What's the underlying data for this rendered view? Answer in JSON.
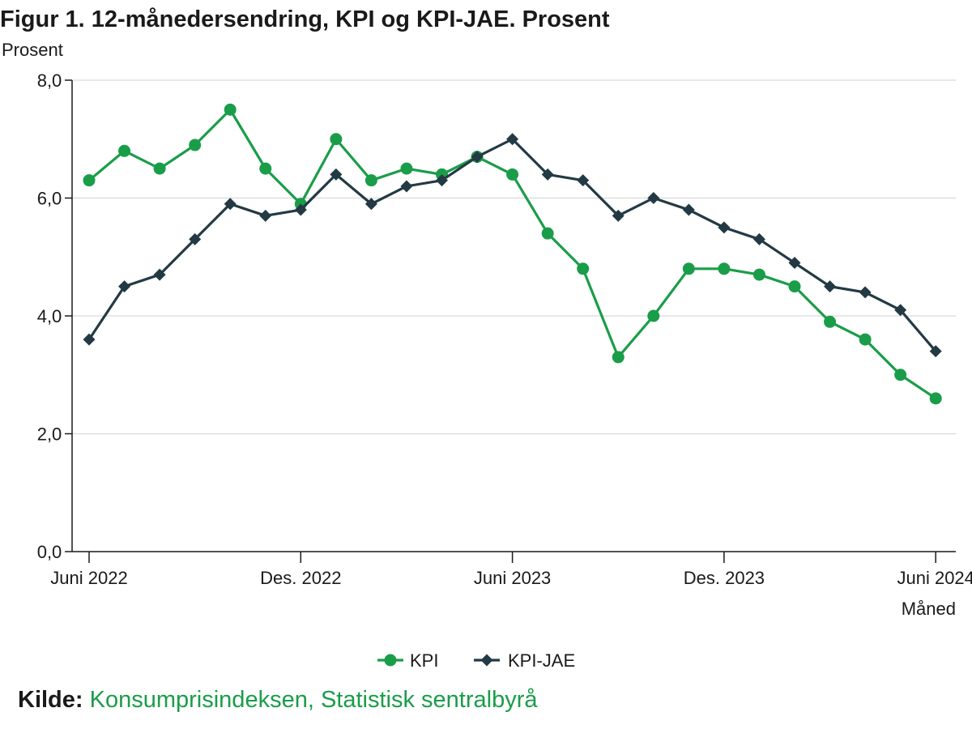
{
  "title": "Figur 1. 12-månedersendring, KPI og KPI-JAE. Prosent",
  "source": {
    "label": "Kilde:",
    "text": "Konsumprisindeksen, Statistisk sentralbyrå"
  },
  "colors": {
    "kpi": "#1a9d49",
    "kpi_jae": "#233a44",
    "grid": "#d9d9d9",
    "axis": "#1a1a1a"
  },
  "chart_data": {
    "type": "line",
    "ylabel": "Prosent",
    "xlabel": "Måned",
    "ylim": [
      0,
      8
    ],
    "yticks": [
      "0,0",
      "2,0",
      "4,0",
      "6,0",
      "8,0"
    ],
    "ytick_values": [
      0,
      2,
      4,
      6,
      8
    ],
    "x_tick_labels": [
      "Juni 2022",
      "Des. 2022",
      "Juni 2023",
      "Des. 2023",
      "Juni 2024"
    ],
    "x_tick_indices": [
      0,
      6,
      12,
      18,
      24
    ],
    "x": [
      "2022-06",
      "2022-07",
      "2022-08",
      "2022-09",
      "2022-10",
      "2022-11",
      "2022-12",
      "2023-01",
      "2023-02",
      "2023-03",
      "2023-04",
      "2023-05",
      "2023-06",
      "2023-07",
      "2023-08",
      "2023-09",
      "2023-10",
      "2023-11",
      "2023-12",
      "2024-01",
      "2024-02",
      "2024-03",
      "2024-04",
      "2024-05",
      "2024-06"
    ],
    "grid": true,
    "legend": "bottom",
    "series": [
      {
        "name": "KPI",
        "marker": "circle",
        "color": "#1a9d49",
        "values": [
          6.3,
          6.8,
          6.5,
          6.9,
          7.5,
          6.5,
          5.9,
          7.0,
          6.3,
          6.5,
          6.4,
          6.7,
          6.4,
          5.4,
          4.8,
          3.3,
          4.0,
          4.8,
          4.8,
          4.7,
          4.5,
          3.9,
          3.6,
          3.0,
          2.6
        ]
      },
      {
        "name": "KPI-JAE",
        "marker": "diamond",
        "color": "#233a44",
        "values": [
          3.6,
          4.5,
          4.7,
          5.3,
          5.9,
          5.7,
          5.8,
          6.4,
          5.9,
          6.2,
          6.3,
          6.7,
          7.0,
          6.4,
          6.3,
          5.7,
          6.0,
          5.8,
          5.5,
          5.3,
          4.9,
          4.5,
          4.4,
          4.1,
          3.4
        ]
      }
    ]
  }
}
